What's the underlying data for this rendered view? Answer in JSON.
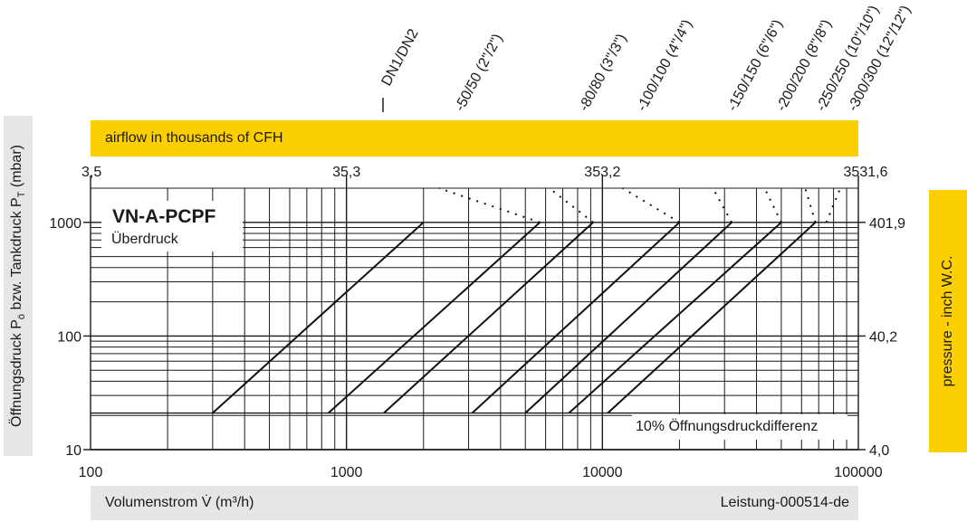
{
  "top_band": {
    "label": "airflow in thousands of CFH",
    "color": "#fcd000"
  },
  "right_band": {
    "label": "pressure  - inch W.C.",
    "color": "#fcd000"
  },
  "left_axis_label": {
    "main": "Öffnungsdruck P",
    "sub_o": "ö",
    "middle": " bzw. Tankdruck P",
    "sub_t": "T",
    "unit": " (mbar)"
  },
  "bottom_band": {
    "label": "Volumenstrom V̇ (m³/h)",
    "ref": "Leistung-000514-de",
    "color": "#e6e6e6"
  },
  "left_band_color": "#e6e6e6",
  "legend_box": {
    "title": "VN-A-PCPF",
    "subtitle": "Überdruck"
  },
  "note": "10% Öffnungsdruckdifferenz",
  "header_label": "DN1/DN2",
  "chart_data": {
    "type": "line",
    "x_scale": "log",
    "y_scale": "log",
    "xlim": [
      100,
      100000
    ],
    "ylim": [
      10,
      2000
    ],
    "xlabel": "Volumenstrom V̇ (m³/h)",
    "ylabel": "Öffnungsdruck Pö bzw. Tankdruck PT (mbar)",
    "x_ticks": [
      "100",
      "1000",
      "10000",
      "100000"
    ],
    "y_ticks": [
      "10",
      "100",
      "1000"
    ],
    "top_ticks": [
      "3,5",
      "35,3",
      "353,2",
      "3531,6"
    ],
    "right_ticks": [
      "4,0",
      "40,2",
      "401,9"
    ],
    "grid": true,
    "series": [
      {
        "name": "DN1/DN2",
        "x": [
          300,
          2000
        ],
        "y": [
          21,
          1000
        ],
        "dashed_extension": []
      },
      {
        "name": "-50/50 (2\"/2\")",
        "x": [
          850,
          5700
        ],
        "y": [
          21,
          1000
        ],
        "dashed_extension": [
          2300,
          2000
        ]
      },
      {
        "name": "-80/80 (3\"/3\")",
        "x": [
          1400,
          9200
        ],
        "y": [
          21,
          1000
        ],
        "dashed_extension": [
          6200,
          2000
        ]
      },
      {
        "name": "-100/100 (4\"/4\")",
        "x": [
          3100,
          20000
        ],
        "y": [
          21,
          1000
        ],
        "dashed_extension": [
          12000,
          2000
        ]
      },
      {
        "name": "-150/150 (6\"/6\")",
        "x": [
          5000,
          32000
        ],
        "y": [
          21,
          1000
        ],
        "dashed_extension": [
          27000,
          2000
        ]
      },
      {
        "name": "-200/200 (8\"/8\")",
        "x": [
          7400,
          50000
        ],
        "y": [
          21,
          1000
        ],
        "dashed_extension": [
          43000,
          2000
        ]
      },
      {
        "name": "-250/250 (10\"/10\")",
        "x": [
          10500,
          68000
        ],
        "y": [
          21,
          1000
        ],
        "dashed_extension": [
          62000,
          2000
        ]
      },
      {
        "name": "-300/300 (12\"/12\")",
        "x": [],
        "y": [],
        "dashed_extension": [
          85000,
          2000
        ]
      }
    ],
    "threshold_line_y": 21
  }
}
